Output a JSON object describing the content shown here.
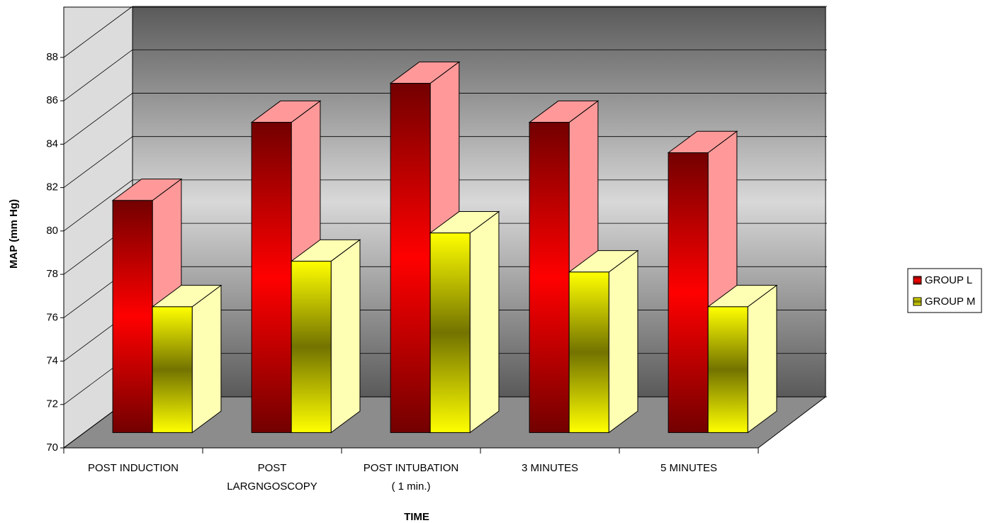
{
  "chart_data": {
    "type": "bar3d",
    "x_label": "TIME",
    "y_label": "MAP (mm Hg)",
    "categories": [
      "POST INDUCTION",
      "POST\nLARGNGOSCOPY",
      "POST INTUBATION\n( 1 min.)",
      "3 MINUTES",
      "5 MINUTES"
    ],
    "series": [
      {
        "name": "GROUP L",
        "color": "#ff0000",
        "values": [
          80.7,
          84.3,
          86.1,
          84.3,
          82.9
        ]
      },
      {
        "name": "GROUP M",
        "color": "#ffff00",
        "values": [
          75.8,
          77.9,
          79.2,
          77.4,
          75.8
        ]
      }
    ],
    "ylim": [
      70,
      88
    ],
    "yticks": [
      70,
      72,
      74,
      76,
      78,
      80,
      82,
      84,
      86,
      88
    ],
    "grid": true,
    "legend": "right"
  }
}
